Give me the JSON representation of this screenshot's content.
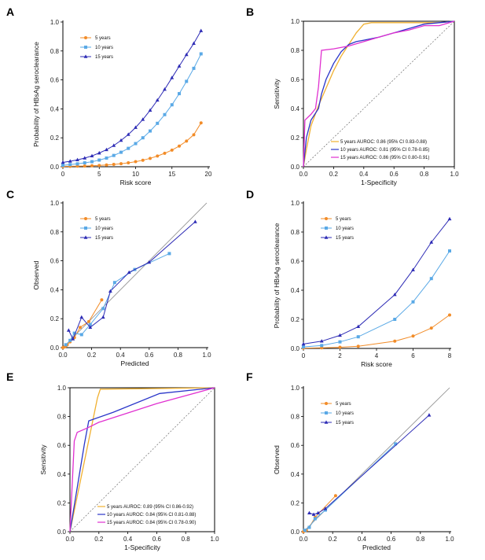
{
  "chart_data": [
    {
      "panel": "A",
      "type": "line",
      "xlabel": "Risk score",
      "ylabel": "Probability of HBsAg seroclearance",
      "xlim": [
        0,
        20
      ],
      "ylim": [
        0,
        1.0
      ],
      "xticks": [
        0,
        5,
        10,
        15,
        20
      ],
      "yticks": [
        0.0,
        0.2,
        0.4,
        0.6,
        0.8,
        1.0
      ],
      "xtick_labels": [
        "0",
        "5",
        "10",
        "15",
        "20"
      ],
      "ytick_labels": [
        "0.0",
        "0.2",
        "0.4",
        "0.6",
        "0.8",
        "1.0"
      ],
      "legend": "top-left",
      "box": "open",
      "series": [
        {
          "name": "5 years",
          "color": "#f28c28",
          "marker": "circle",
          "x": [
            0,
            1,
            2,
            3,
            4,
            5,
            6,
            7,
            8,
            9,
            10,
            11,
            12,
            13,
            14,
            15,
            16,
            17,
            18,
            19
          ],
          "y": [
            0.002,
            0.003,
            0.004,
            0.005,
            0.007,
            0.009,
            0.012,
            0.016,
            0.021,
            0.027,
            0.035,
            0.045,
            0.058,
            0.074,
            0.093,
            0.115,
            0.143,
            0.177,
            0.221,
            0.303
          ]
        },
        {
          "name": "10 years",
          "color": "#5aa9e6",
          "marker": "square",
          "x": [
            0,
            1,
            2,
            3,
            4,
            5,
            6,
            7,
            8,
            9,
            10,
            11,
            12,
            13,
            14,
            15,
            16,
            17,
            18,
            19
          ],
          "y": [
            0.01,
            0.015,
            0.02,
            0.027,
            0.035,
            0.046,
            0.06,
            0.078,
            0.1,
            0.127,
            0.16,
            0.2,
            0.247,
            0.3,
            0.36,
            0.428,
            0.505,
            0.59,
            0.68,
            0.78
          ]
        },
        {
          "name": "15 years",
          "color": "#2d2bb5",
          "marker": "triangle",
          "x": [
            0,
            1,
            2,
            3,
            4,
            5,
            6,
            7,
            8,
            9,
            10,
            11,
            12,
            13,
            14,
            15,
            16,
            17,
            18,
            19
          ],
          "y": [
            0.03,
            0.038,
            0.048,
            0.06,
            0.075,
            0.095,
            0.118,
            0.147,
            0.182,
            0.223,
            0.271,
            0.327,
            0.39,
            0.46,
            0.535,
            0.615,
            0.695,
            0.775,
            0.852,
            0.94
          ]
        }
      ]
    },
    {
      "panel": "B",
      "type": "line",
      "xlabel": "1-Specificity",
      "ylabel": "Sensitivity",
      "xlim": [
        0,
        1
      ],
      "ylim": [
        0,
        1
      ],
      "xticks": [
        0.0,
        0.2,
        0.4,
        0.6,
        0.8,
        1.0
      ],
      "yticks": [
        0.0,
        0.2,
        0.4,
        0.6,
        0.8,
        1.0
      ],
      "xtick_labels": [
        "0.0",
        "0.2",
        "0.4",
        "0.6",
        "0.8",
        "1.0"
      ],
      "ytick_labels": [
        "0.0",
        "0.2",
        "0.4",
        "0.6",
        "0.8",
        "1.0"
      ],
      "legend": "bottom-right",
      "box": "closed",
      "reference_line": "diagonal",
      "series": [
        {
          "name": "5 years AUROC: 0.86 (95% CI 0.83-0.88)",
          "color": "#f0b030",
          "x": [
            0,
            0.02,
            0.05,
            0.1,
            0.15,
            0.2,
            0.25,
            0.3,
            0.35,
            0.4,
            0.45,
            0.5,
            0.6,
            0.7,
            0.8,
            0.9,
            1.0
          ],
          "y": [
            0,
            0.12,
            0.28,
            0.42,
            0.54,
            0.66,
            0.76,
            0.84,
            0.92,
            0.98,
            0.99,
            0.99,
            0.99,
            0.99,
            0.99,
            0.99,
            1.0
          ]
        },
        {
          "name": "10 years AUROC: 0.81 (95% CI 0.78-0.85)",
          "color": "#2a36c9",
          "x": [
            0,
            0.02,
            0.05,
            0.1,
            0.12,
            0.15,
            0.2,
            0.25,
            0.3,
            0.35,
            0.4,
            0.5,
            0.6,
            0.7,
            0.8,
            0.9,
            1.0
          ],
          "y": [
            0,
            0.2,
            0.32,
            0.4,
            0.5,
            0.6,
            0.71,
            0.79,
            0.84,
            0.86,
            0.87,
            0.89,
            0.92,
            0.95,
            0.98,
            0.99,
            1.0
          ]
        },
        {
          "name": "15 years AUROC: 0.86 (95% CI 0.80-0.91)",
          "color": "#e030d0",
          "x": [
            0,
            0.01,
            0.05,
            0.08,
            0.1,
            0.12,
            0.2,
            0.3,
            0.4,
            0.5,
            0.6,
            0.7,
            0.8,
            0.9,
            1.0
          ],
          "y": [
            0,
            0.32,
            0.36,
            0.4,
            0.55,
            0.8,
            0.81,
            0.83,
            0.86,
            0.89,
            0.92,
            0.94,
            0.97,
            0.97,
            1.0
          ]
        }
      ]
    },
    {
      "panel": "C",
      "type": "line",
      "xlabel": "Predicted",
      "ylabel": "Observed",
      "xlim": [
        0,
        1
      ],
      "ylim": [
        0,
        1
      ],
      "xticks": [
        0.0,
        0.2,
        0.4,
        0.6,
        0.8,
        1.0
      ],
      "yticks": [
        0.0,
        0.2,
        0.4,
        0.6,
        0.8,
        1.0
      ],
      "xtick_labels": [
        "0.0",
        "0.2",
        "0.4",
        "0.6",
        "0.8",
        "1.0"
      ],
      "ytick_labels": [
        "0.0",
        "0.2",
        "0.4",
        "0.6",
        "0.8",
        "1.0"
      ],
      "legend": "top-left",
      "box": "open",
      "reference_line": "diagonal",
      "series": [
        {
          "name": "5 years",
          "color": "#f28c28",
          "marker": "circle",
          "x": [
            0.0,
            0.01,
            0.02,
            0.03,
            0.05,
            0.08,
            0.12,
            0.18,
            0.27
          ],
          "y": [
            0.0,
            0.005,
            0.01,
            0.02,
            0.04,
            0.07,
            0.14,
            0.18,
            0.33
          ]
        },
        {
          "name": "10 years",
          "color": "#5aa9e6",
          "marker": "square",
          "x": [
            0.02,
            0.05,
            0.08,
            0.13,
            0.19,
            0.28,
            0.36,
            0.5,
            0.74
          ],
          "y": [
            0.02,
            0.05,
            0.1,
            0.09,
            0.16,
            0.27,
            0.45,
            0.54,
            0.65
          ]
        },
        {
          "name": "15 years",
          "color": "#2d2bb5",
          "marker": "triangle",
          "x": [
            0.04,
            0.07,
            0.13,
            0.19,
            0.28,
            0.33,
            0.46,
            0.6,
            0.92
          ],
          "y": [
            0.12,
            0.06,
            0.21,
            0.14,
            0.21,
            0.39,
            0.52,
            0.59,
            0.87
          ]
        }
      ]
    },
    {
      "panel": "D",
      "type": "line",
      "xlabel": "Risk score",
      "ylabel": "Probability of HBsAg seroclearance",
      "xlim": [
        0,
        8
      ],
      "ylim": [
        0,
        1.0
      ],
      "xticks": [
        0,
        2,
        4,
        6,
        8
      ],
      "yticks": [
        0.0,
        0.2,
        0.4,
        0.6,
        0.8,
        1.0
      ],
      "xtick_labels": [
        "0",
        "2",
        "4",
        "6",
        "8"
      ],
      "ytick_labels": [
        "0.0",
        "0.2",
        "0.4",
        "0.6",
        "0.8",
        "1.0"
      ],
      "legend": "top-left",
      "box": "open",
      "series": [
        {
          "name": "5 years",
          "color": "#f28c28",
          "marker": "circle",
          "x": [
            0,
            1,
            2,
            3,
            5,
            6,
            7,
            8
          ],
          "y": [
            0.002,
            0.004,
            0.008,
            0.015,
            0.05,
            0.085,
            0.14,
            0.23
          ]
        },
        {
          "name": "10 years",
          "color": "#5aa9e6",
          "marker": "square",
          "x": [
            0,
            1,
            2,
            3,
            5,
            6,
            7,
            8
          ],
          "y": [
            0.01,
            0.02,
            0.045,
            0.08,
            0.2,
            0.32,
            0.48,
            0.67
          ]
        },
        {
          "name": "15 years",
          "color": "#2d2bb5",
          "marker": "triangle",
          "x": [
            0,
            1,
            2,
            3,
            5,
            6,
            7,
            8
          ],
          "y": [
            0.03,
            0.05,
            0.09,
            0.15,
            0.37,
            0.54,
            0.73,
            0.89
          ]
        }
      ]
    },
    {
      "panel": "E",
      "type": "line",
      "xlabel": "1-Specificity",
      "ylabel": "Sensitivity",
      "xlim": [
        0,
        1
      ],
      "ylim": [
        0,
        1
      ],
      "xticks": [
        0.0,
        0.2,
        0.4,
        0.6,
        0.8,
        1.0
      ],
      "yticks": [
        0.0,
        0.2,
        0.4,
        0.6,
        0.8,
        1.0
      ],
      "xtick_labels": [
        "0.0",
        "0.2",
        "0.4",
        "0.6",
        "0.8",
        "1.0"
      ],
      "ytick_labels": [
        "0.0",
        "0.2",
        "0.4",
        "0.6",
        "0.8",
        "1.0"
      ],
      "legend": "bottom-right",
      "box": "closed",
      "reference_line": "diagonal",
      "series": [
        {
          "name": "5 years AUROC: 0.89 (95% CI 0.86-0.92)",
          "color": "#f0b030",
          "x": [
            0,
            0.19,
            0.21,
            1.0
          ],
          "y": [
            0,
            0.93,
            0.99,
            1.0
          ]
        },
        {
          "name": "10 years AUROC: 0.84 (95% CI 0.81-0.88)",
          "color": "#2a36c9",
          "x": [
            0,
            0.1,
            0.13,
            0.3,
            0.62,
            1.0
          ],
          "y": [
            0,
            0.61,
            0.77,
            0.83,
            0.96,
            1.0
          ]
        },
        {
          "name": "15 years AUROC: 0.84 (95% CI 0.78-0.90)",
          "color": "#e030d0",
          "x": [
            0,
            0.03,
            0.05,
            0.12,
            0.2,
            0.6,
            1.0
          ],
          "y": [
            0,
            0.63,
            0.69,
            0.72,
            0.76,
            0.89,
            1.0
          ]
        }
      ]
    },
    {
      "panel": "F",
      "type": "line",
      "xlabel": "Predicted",
      "ylabel": "Observed",
      "xlim": [
        0,
        1
      ],
      "ylim": [
        0,
        1
      ],
      "xticks": [
        0.0,
        0.2,
        0.4,
        0.6,
        0.8,
        1.0
      ],
      "yticks": [
        0.0,
        0.2,
        0.4,
        0.6,
        0.8,
        1.0
      ],
      "xtick_labels": [
        "0.0",
        "0.2",
        "0.4",
        "0.6",
        "0.8",
        "1.0"
      ],
      "ytick_labels": [
        "0.0",
        "0.2",
        "0.4",
        "0.6",
        "0.8",
        "1.0"
      ],
      "legend": "top-left",
      "box": "open",
      "reference_line": "diagonal",
      "series": [
        {
          "name": "5 years",
          "color": "#f28c28",
          "marker": "circle",
          "x": [
            0.0,
            0.02,
            0.04,
            0.08,
            0.22
          ],
          "y": [
            0.0,
            0.01,
            0.03,
            0.1,
            0.25
          ]
        },
        {
          "name": "10 years",
          "color": "#5aa9e6",
          "marker": "square",
          "x": [
            0.01,
            0.04,
            0.08,
            0.15,
            0.63
          ],
          "y": [
            0.01,
            0.03,
            0.09,
            0.15,
            0.61
          ]
        },
        {
          "name": "15 years",
          "color": "#2d2bb5",
          "marker": "triangle",
          "x": [
            0.04,
            0.07,
            0.1,
            0.15,
            0.86
          ],
          "y": [
            0.13,
            0.12,
            0.13,
            0.16,
            0.81
          ]
        }
      ]
    }
  ]
}
